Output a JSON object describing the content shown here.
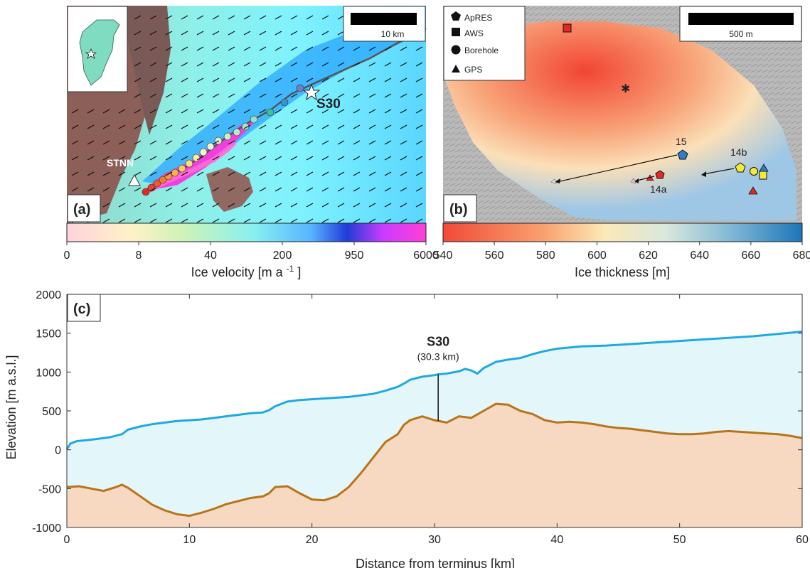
{
  "panels": {
    "a": {
      "label": "(a)",
      "scalebar_label": "10 km",
      "site_label": "S30",
      "station_label": "STNN",
      "colorbar": {
        "ticks": [
          "0",
          "8",
          "40",
          "200",
          "950",
          "6000"
        ],
        "xlabel_main": "Ice velocity [m a",
        "xlabel_sup": "-1",
        "xlabel_tail": "]"
      }
    },
    "b": {
      "label": "(b)",
      "scalebar_label": "500 m",
      "legend": [
        {
          "name": "ApRES",
          "icon": "pentagon-icon"
        },
        {
          "name": "AWS",
          "icon": "square-icon"
        },
        {
          "name": "Borehole",
          "icon": "circle-icon"
        },
        {
          "name": "GPS",
          "icon": "triangle-icon"
        }
      ],
      "site_labels": [
        "15",
        "14a",
        "14b"
      ],
      "colorbar": {
        "ticks": [
          "540",
          "560",
          "580",
          "600",
          "620",
          "640",
          "660",
          "680"
        ],
        "xlabel": "Ice thickness [m]"
      }
    }
  },
  "chart_data": {
    "type": "area",
    "panel_label": "(c)",
    "xlabel": "Distance from terminus [km]",
    "ylabel": "Elevation [m a.s.l.]",
    "xlim": [
      0,
      60
    ],
    "ylim": [
      -1000,
      2000
    ],
    "xticks": [
      0,
      10,
      20,
      30,
      40,
      50,
      60
    ],
    "yticks": [
      -1000,
      -500,
      0,
      500,
      1000,
      1500,
      2000
    ],
    "annotation": {
      "title": "S30",
      "subtitle": "(30.3 km)",
      "x": 30.3
    },
    "series": [
      {
        "color": "#1ea9e1",
        "fill": "#e3f7fb",
        "x": [
          0,
          0.3,
          0.8,
          2,
          3.5,
          4.5,
          5,
          6,
          7,
          8,
          9,
          10,
          11,
          12,
          13,
          14,
          15,
          16,
          16.5,
          17,
          18,
          19,
          20,
          21,
          22,
          23,
          24,
          25,
          26,
          27,
          27.6,
          28,
          29,
          30,
          30.3,
          31,
          32,
          32.5,
          33,
          33.5,
          34,
          35,
          36,
          37,
          38,
          39,
          40,
          42,
          44,
          46,
          48,
          50,
          52,
          54,
          56,
          58,
          60
        ],
        "y": [
          10,
          80,
          110,
          130,
          160,
          200,
          260,
          300,
          330,
          350,
          370,
          380,
          390,
          410,
          430,
          450,
          470,
          480,
          510,
          560,
          620,
          640,
          650,
          660,
          670,
          680,
          700,
          720,
          760,
          810,
          860,
          900,
          940,
          960,
          970,
          980,
          1010,
          1040,
          1020,
          980,
          1050,
          1130,
          1160,
          1180,
          1230,
          1270,
          1300,
          1330,
          1340,
          1360,
          1380,
          1400,
          1420,
          1440,
          1460,
          1490,
          1520
        ]
      },
      {
        "color": "#b8741a",
        "fill": "#f7d8c0",
        "x": [
          0,
          1,
          2,
          3,
          4,
          4.5,
          5,
          6,
          7,
          8,
          9,
          10,
          11,
          12,
          13,
          14,
          15,
          16,
          16.5,
          17,
          18,
          19,
          20,
          21,
          22,
          23,
          24,
          25,
          26,
          27,
          27.5,
          28,
          29,
          30,
          31,
          32,
          33,
          34,
          35,
          36,
          37,
          38,
          39,
          40,
          41,
          42,
          43,
          44,
          45,
          46,
          47,
          48,
          49,
          50,
          51,
          52,
          53,
          54,
          55,
          56,
          57,
          58,
          59,
          60
        ],
        "y": [
          -480,
          -470,
          -500,
          -530,
          -480,
          -450,
          -490,
          -600,
          -710,
          -780,
          -830,
          -850,
          -810,
          -760,
          -700,
          -660,
          -620,
          -600,
          -560,
          -480,
          -470,
          -560,
          -640,
          -650,
          -600,
          -480,
          -300,
          -100,
          100,
          200,
          320,
          380,
          430,
          380,
          350,
          430,
          410,
          500,
          590,
          580,
          500,
          460,
          380,
          350,
          360,
          350,
          330,
          300,
          280,
          270,
          250,
          230,
          210,
          200,
          200,
          210,
          230,
          240,
          230,
          220,
          210,
          200,
          180,
          150
        ]
      }
    ]
  }
}
